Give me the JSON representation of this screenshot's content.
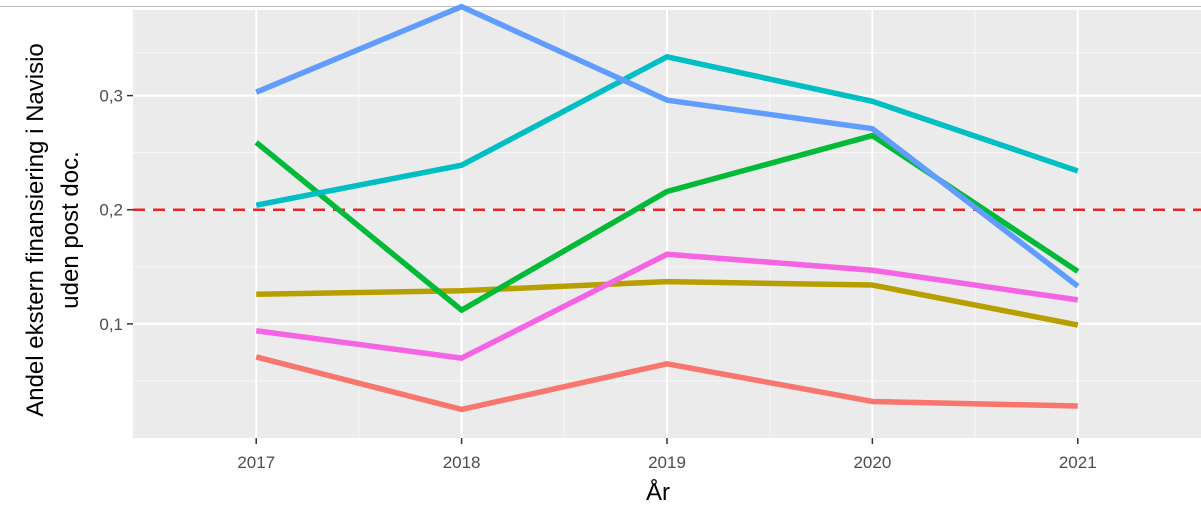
{
  "chart_data": {
    "type": "line",
    "title": "",
    "xlabel": "År",
    "ylabel_lines": [
      "Andel ekstern finansiering i Navisio",
      "uden post doc."
    ],
    "x": [
      "2017",
      "2018",
      "2019",
      "2020",
      "2021"
    ],
    "xlim": [
      2016.4,
      2021.6
    ],
    "ylim": [
      0,
      0.375
    ],
    "y_ticks": [
      0.1,
      0.2,
      0.3
    ],
    "y_tick_labels": [
      "0,1",
      "0,2",
      "0,3"
    ],
    "grid": true,
    "legend": "none",
    "background": "#ebebeb",
    "reference_line": {
      "y": 0.2,
      "color": "#e8252b",
      "style": "dashed"
    },
    "series": [
      {
        "color": "#f8766d",
        "values": [
          0.071,
          0.025,
          0.065,
          0.032,
          0.028
        ]
      },
      {
        "color": "#b79f00",
        "values": [
          0.126,
          0.129,
          0.137,
          0.134,
          0.099
        ]
      },
      {
        "color": "#00ba38",
        "values": [
          0.259,
          0.112,
          0.216,
          0.265,
          0.146
        ]
      },
      {
        "color": "#00bfc4",
        "values": [
          0.204,
          0.239,
          0.334,
          0.295,
          0.234
        ]
      },
      {
        "color": "#619cff",
        "values": [
          0.303,
          0.378,
          0.296,
          0.271,
          0.133
        ]
      },
      {
        "color": "#f564e3",
        "values": [
          0.094,
          0.07,
          0.161,
          0.147,
          0.121
        ]
      }
    ]
  }
}
